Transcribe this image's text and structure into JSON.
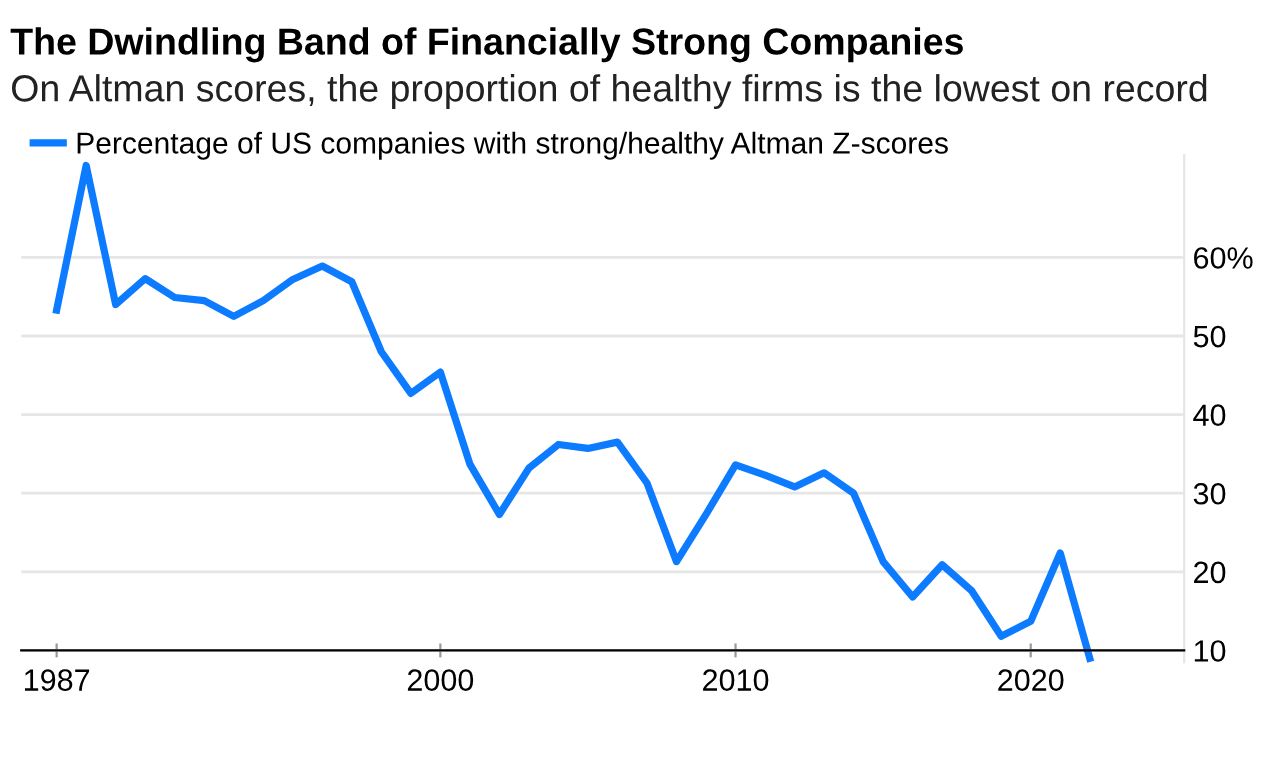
{
  "chart_data": {
    "type": "line",
    "title": "The Dwindling Band of Financially Strong Companies",
    "subtitle": "On Altman scores, the proportion of healthy firms is the lowest on record",
    "x": [
      1987,
      1988,
      1989,
      1990,
      1991,
      1992,
      1993,
      1994,
      1995,
      1996,
      1997,
      1998,
      1999,
      2000,
      2001,
      2002,
      2003,
      2004,
      2005,
      2006,
      2007,
      2008,
      2009,
      2010,
      2011,
      2012,
      2013,
      2014,
      2015,
      2016,
      2017,
      2018,
      2019,
      2020,
      2021,
      2022
    ],
    "series": [
      {
        "name": "Percentage of US companies with strong/healthy Altman Z-scores",
        "color": "#0d7bff",
        "values": [
          53.3,
          71.7,
          54.0,
          57.3,
          54.9,
          54.5,
          52.5,
          54.5,
          57.2,
          58.9,
          56.9,
          48.0,
          42.7,
          45.4,
          33.7,
          27.3,
          33.2,
          36.2,
          35.7,
          36.5,
          31.3,
          21.3,
          27.3,
          33.6,
          32.3,
          30.8,
          32.6,
          30.0,
          21.3,
          16.8,
          20.9,
          17.6,
          11.8,
          13.7,
          22.4,
          9.0
        ]
      }
    ],
    "xlim": [
      1985.8,
      2025.2
    ],
    "xticks": [
      1987,
      2000,
      2010,
      2020
    ],
    "ylim": [
      8.5,
      73
    ],
    "yticks": [
      10,
      20,
      30,
      40,
      50,
      {
        "value": 60,
        "label": "60%"
      }
    ],
    "grid": "y",
    "legend": "top left",
    "marker": "none",
    "line_style": "solid"
  }
}
